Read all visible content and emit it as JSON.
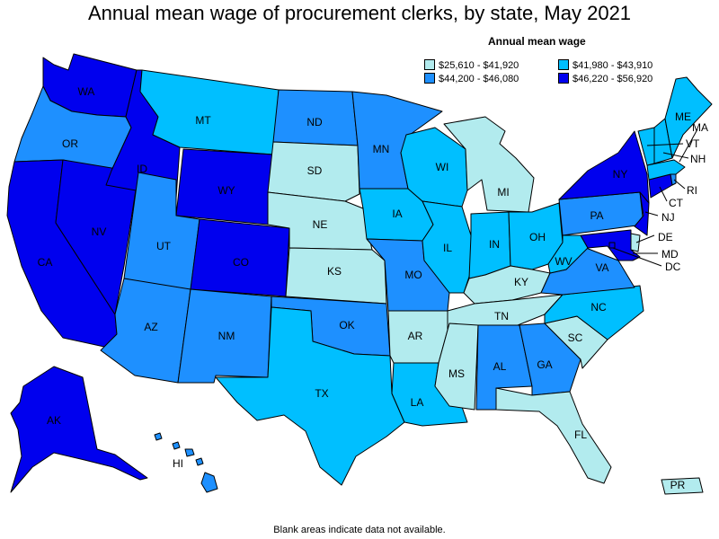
{
  "title": "Annual mean wage of procurement clerks, by state, May 2021",
  "legend": {
    "title": "Annual mean wage",
    "items": [
      {
        "label": "$25,610 - $41,920",
        "color": "#b2ebee"
      },
      {
        "label": "$41,980 - $43,910",
        "color": "#00bfff"
      },
      {
        "label": "$44,200 - $46,080",
        "color": "#1e90ff"
      },
      {
        "label": "$46,220 - $56,920",
        "color": "#0000ee"
      }
    ]
  },
  "footnote": "Blank areas indicate data not available.",
  "states": {
    "WA": "$46,220 - $56,920",
    "OR": "$44,200 - $46,080",
    "CA": "$46,220 - $56,920",
    "NV": "$46,220 - $56,920",
    "ID": "$46,220 - $56,920",
    "MT": "$41,980 - $43,910",
    "WY": "$46,220 - $56,920",
    "UT": "$44,200 - $46,080",
    "CO": "$46,220 - $56,920",
    "AZ": "$44,200 - $46,080",
    "NM": "$44,200 - $46,080",
    "ND": "$44,200 - $46,080",
    "SD": "$25,610 - $41,920",
    "NE": "$25,610 - $41,920",
    "KS": "$25,610 - $41,920",
    "OK": "$44,200 - $46,080",
    "TX": "$41,980 - $43,910",
    "MN": "$44,200 - $46,080",
    "IA": "$41,980 - $43,910",
    "MO": "$44,200 - $46,080",
    "AR": "$25,610 - $41,920",
    "LA": "$41,980 - $43,910",
    "WI": "$41,980 - $43,910",
    "IL": "$41,980 - $43,910",
    "MI": "$25,610 - $41,920",
    "IN": "$41,980 - $43,910",
    "OH": "$41,980 - $43,910",
    "KY": "$25,610 - $41,920",
    "TN": "$25,610 - $41,920",
    "MS": "$25,610 - $41,920",
    "AL": "$44,200 - $46,080",
    "GA": "$44,200 - $46,080",
    "FL": "$25,610 - $41,920",
    "SC": "$25,610 - $41,920",
    "NC": "$41,980 - $43,910",
    "VA": "$44,200 - $46,080",
    "WV": "$41,980 - $43,910",
    "PA": "$44,200 - $46,080",
    "NY": "$46,220 - $56,920",
    "ME": "$41,980 - $43,910",
    "VT": "$41,980 - $43,910",
    "NH": "$41,980 - $43,910",
    "MA": "$41,980 - $43,910",
    "RI": "$44,200 - $46,080",
    "CT": "$46,220 - $56,920",
    "NJ": "$46,220 - $56,920",
    "DE": "$25,610 - $41,920",
    "MD": "$46,220 - $56,920",
    "DC": "$46,220 - $56,920",
    "AK": "$46,220 - $56,920",
    "HI": "$44,200 - $46,080",
    "PR": "$25,610 - $41,920"
  }
}
